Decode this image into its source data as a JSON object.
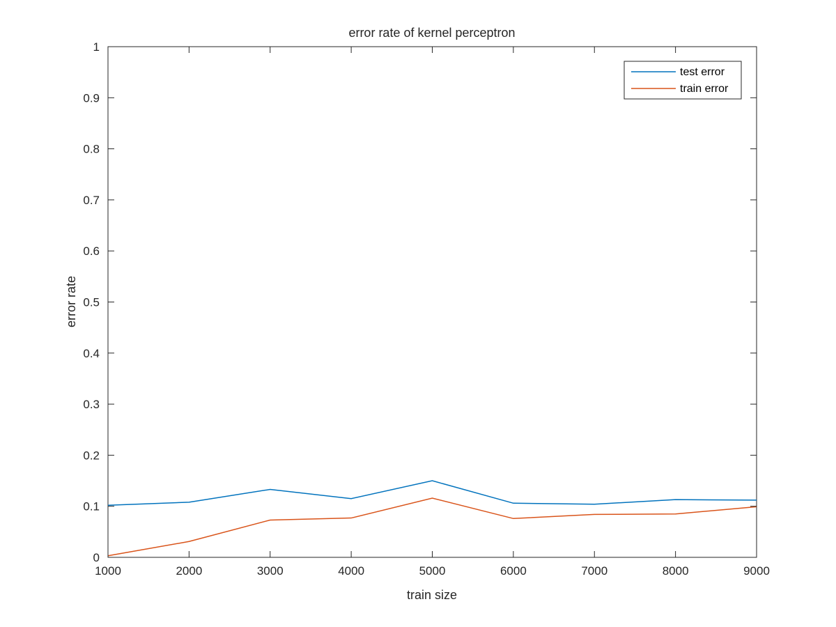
{
  "chart_data": {
    "type": "line",
    "title": "error rate of kernel perceptron",
    "xlabel": "train size",
    "ylabel": "error rate",
    "xlim": [
      1000,
      9000
    ],
    "ylim": [
      0,
      1
    ],
    "x": [
      1000,
      2000,
      3000,
      4000,
      5000,
      6000,
      7000,
      8000,
      9000
    ],
    "x_ticks": [
      "1000",
      "2000",
      "3000",
      "4000",
      "5000",
      "6000",
      "7000",
      "8000",
      "9000"
    ],
    "y_ticks": [
      "0",
      "0.1",
      "0.2",
      "0.3",
      "0.4",
      "0.5",
      "0.6",
      "0.7",
      "0.8",
      "0.9",
      "1"
    ],
    "grid": false,
    "legend_position": "top-right",
    "series": [
      {
        "name": "test error",
        "color": "#0072BD",
        "values": [
          0.102,
          0.108,
          0.133,
          0.115,
          0.15,
          0.106,
          0.104,
          0.113,
          0.112
        ]
      },
      {
        "name": "train error",
        "color": "#D95319",
        "values": [
          0.003,
          0.031,
          0.073,
          0.077,
          0.116,
          0.076,
          0.084,
          0.085,
          0.099
        ]
      }
    ]
  }
}
